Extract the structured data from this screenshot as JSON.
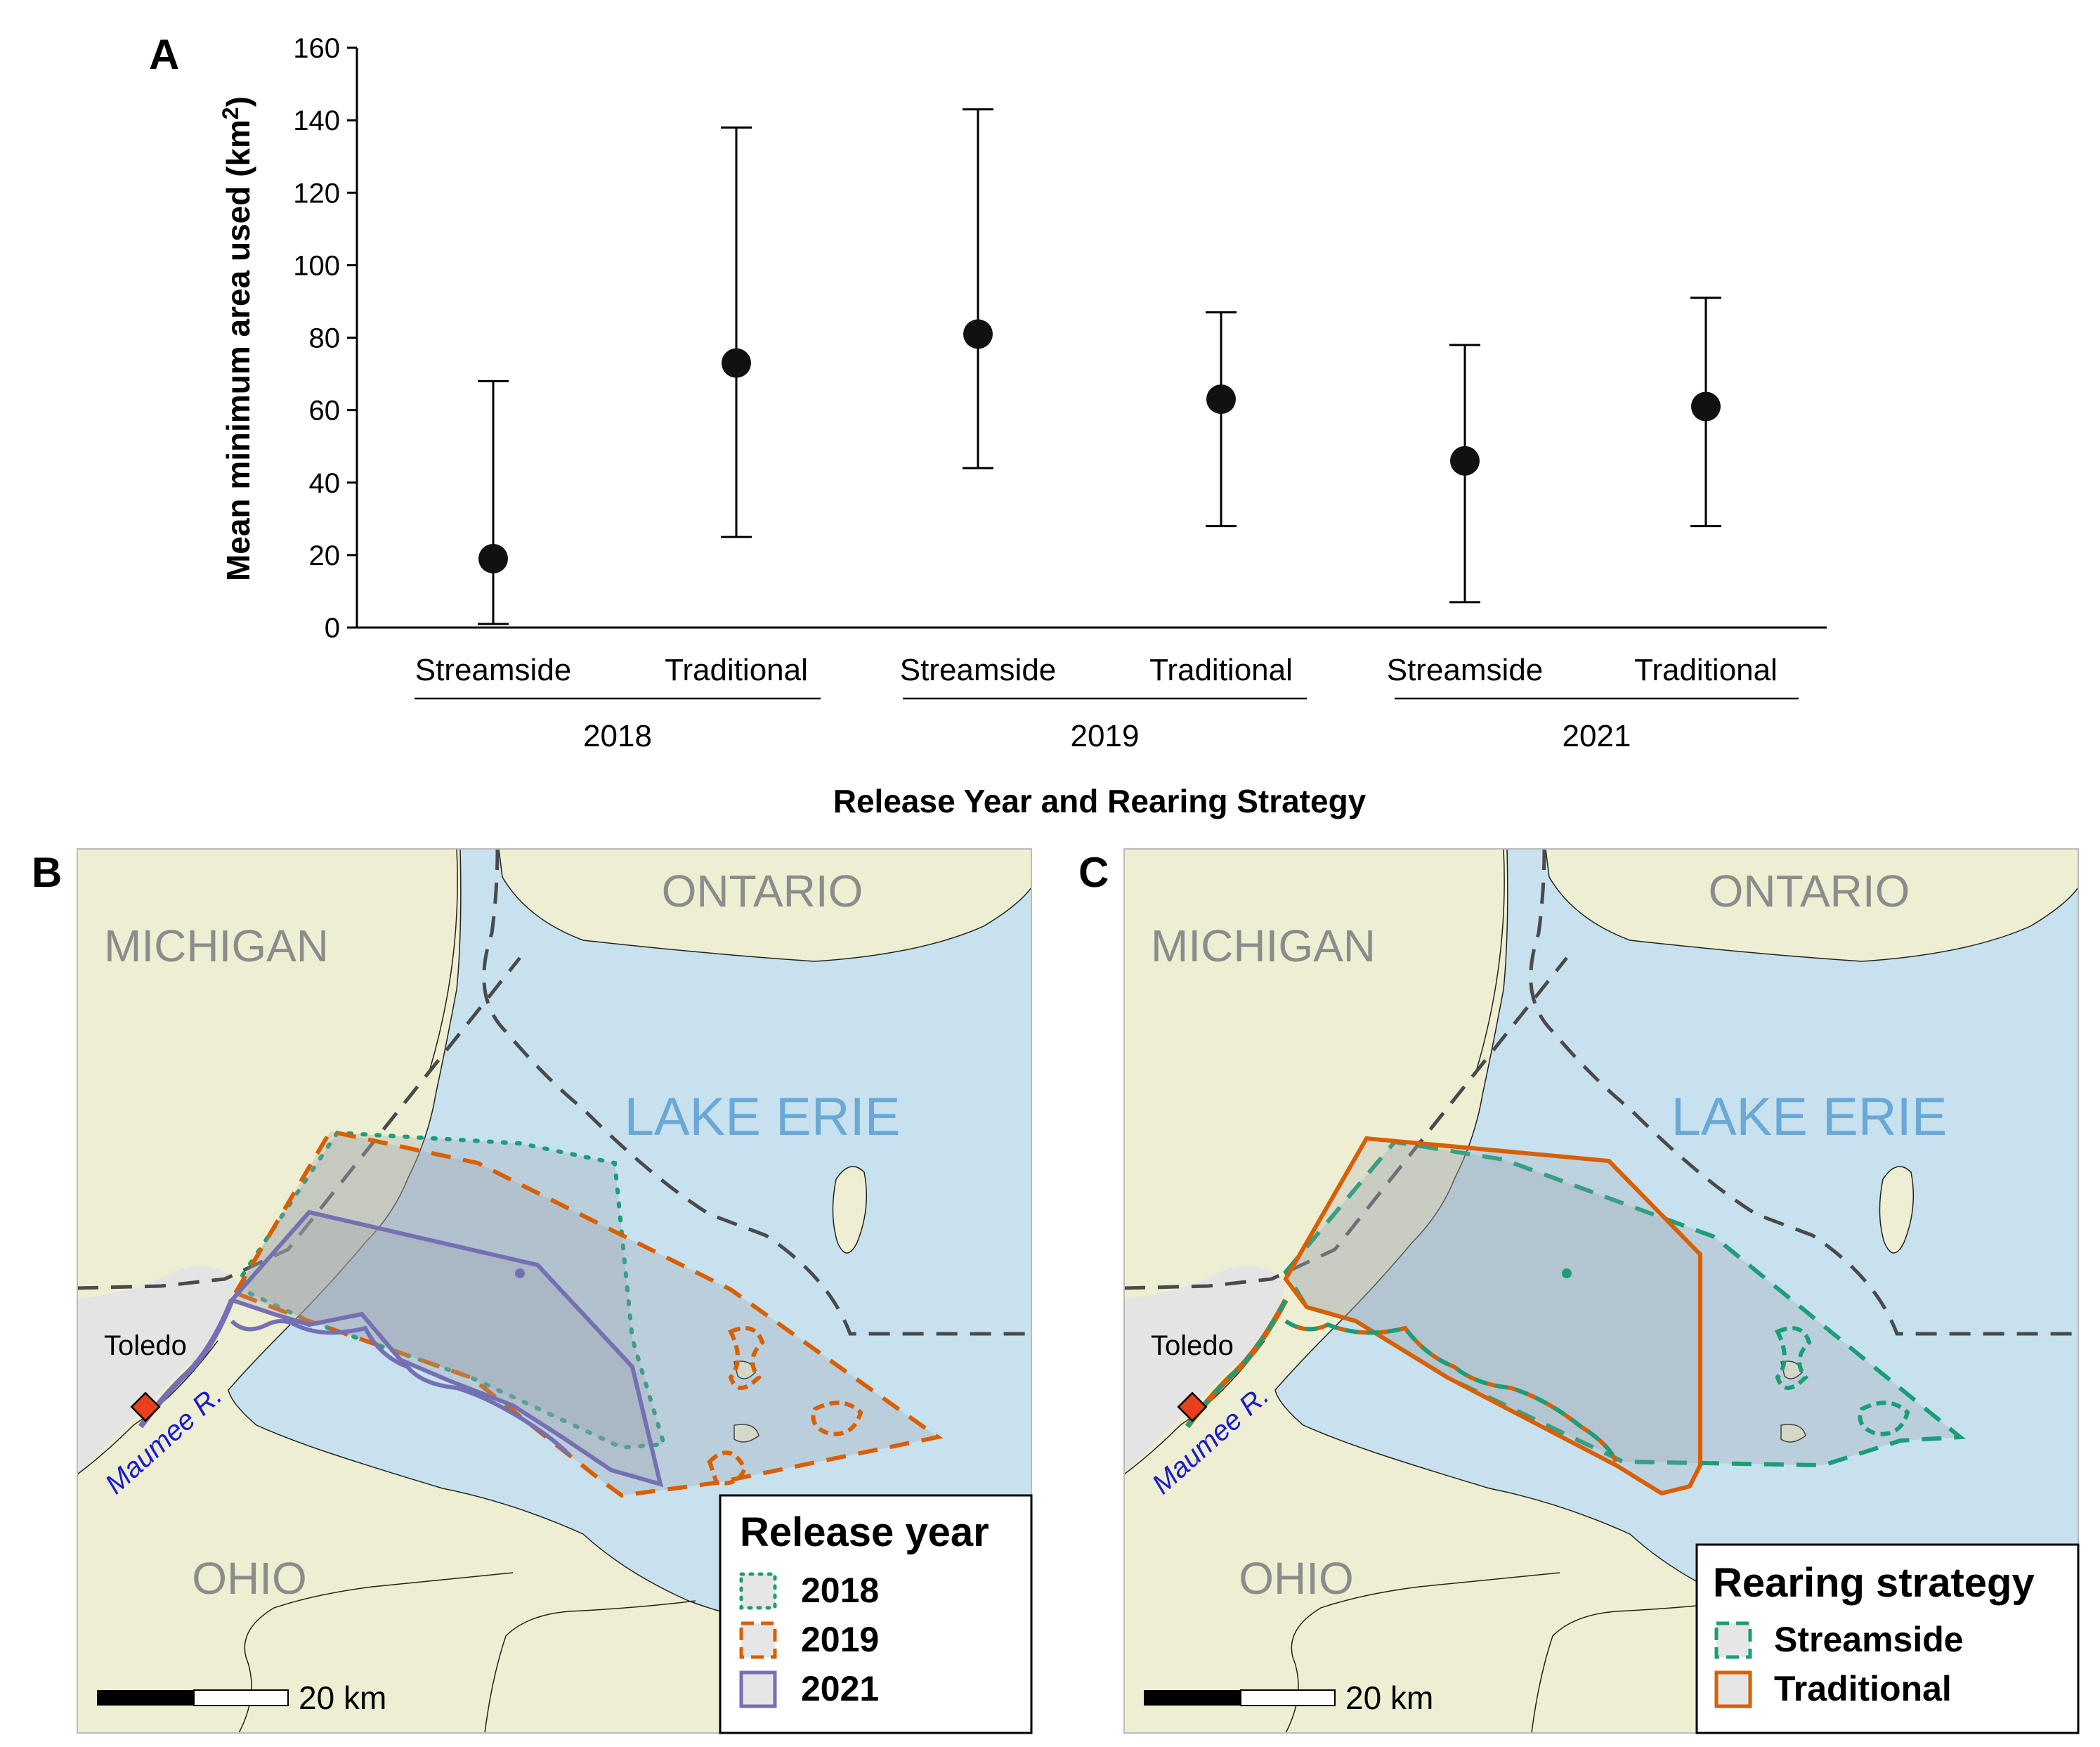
{
  "chart_data": [
    {
      "panel": "A",
      "type": "scatter",
      "title": "",
      "ylabel": "Mean minimum area used (km²)",
      "ylabel_main": "Mean minimum area used (km",
      "ylabel_sup": "2",
      "ylabel_close": ")",
      "xlabel": "Release Year and Rearing Strategy",
      "ylim": [
        0,
        160
      ],
      "yticks": [
        "0",
        "20",
        "40",
        "60",
        "80",
        "100",
        "120",
        "140",
        "160"
      ],
      "groups": [
        "2018",
        "2019",
        "2021"
      ],
      "categories": [
        "Streamside",
        "Traditional",
        "Streamside",
        "Traditional",
        "Streamside",
        "Traditional"
      ],
      "series": [
        {
          "values": [
            19,
            73,
            81,
            63,
            46,
            61
          ],
          "lower": [
            1,
            25,
            44,
            28,
            7,
            28
          ],
          "upper": [
            68,
            138,
            143,
            87,
            78,
            91
          ]
        }
      ],
      "marker_color": "#111111"
    },
    {
      "panel": "B",
      "type": "map",
      "labels": {
        "michigan": "MICHIGAN",
        "ontario": "ONTARIO",
        "lake": "LAKE ERIE",
        "ohio": "OHIO",
        "city": "Toledo",
        "river": "Maumee R.",
        "scale": "20 km"
      },
      "legend": {
        "title": "Release year",
        "items": [
          {
            "label": "2018",
            "color": "#1b9e77",
            "style": "dotted"
          },
          {
            "label": "2019",
            "color": "#d95f02",
            "style": "dashed"
          },
          {
            "label": "2021",
            "color": "#7570b3",
            "style": "solid"
          }
        ]
      }
    },
    {
      "panel": "C",
      "type": "map",
      "labels": {
        "michigan": "MICHIGAN",
        "ontario": "ONTARIO",
        "lake": "LAKE ERIE",
        "ohio": "OHIO",
        "city": "Toledo",
        "river": "Maumee R.",
        "scale": "20 km"
      },
      "legend": {
        "title": "Rearing strategy",
        "items": [
          {
            "label": "Streamside",
            "color": "#1b9e77",
            "style": "dashed"
          },
          {
            "label": "Traditional",
            "color": "#d95f02",
            "style": "solid"
          }
        ]
      }
    }
  ],
  "colors": {
    "land": "#eeeed2",
    "water": "#c7e1ee",
    "urban": "#e4e4e4",
    "border": "#4a4a4a",
    "hull": "#9aa3ad",
    "site_marker": "#e8401c"
  }
}
